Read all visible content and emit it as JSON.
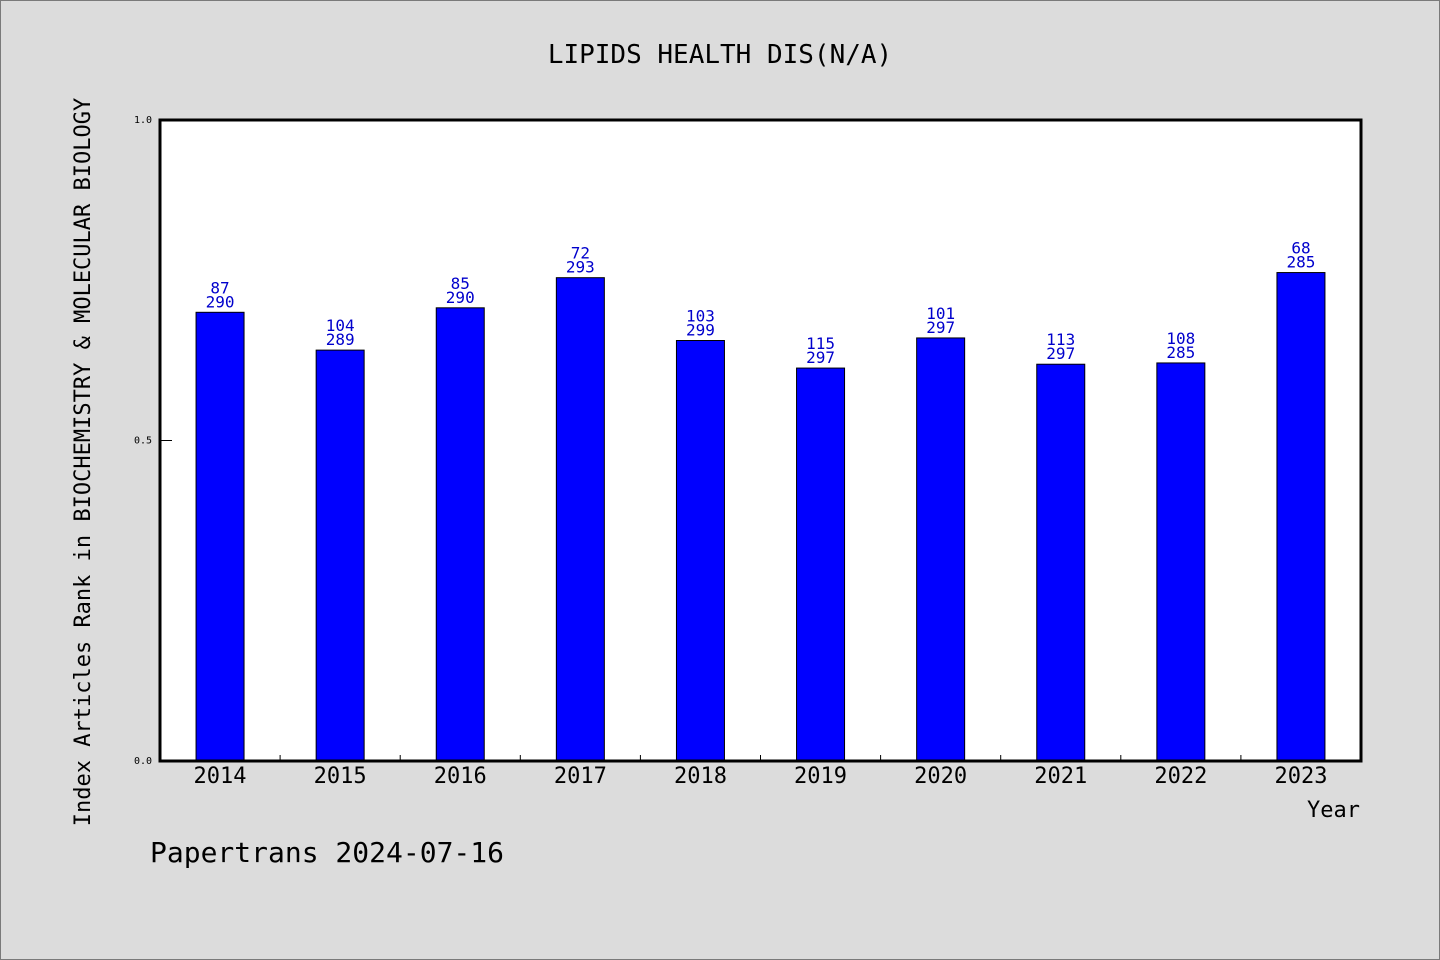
{
  "chart_data": {
    "type": "bar",
    "title": "LIPIDS HEALTH DIS(N/A)",
    "xlabel": "Year",
    "ylabel": "Index Articles Rank in BIOCHEMISTRY & MOLECULAR BIOLOGY",
    "categories": [
      "2014",
      "2015",
      "2016",
      "2017",
      "2018",
      "2019",
      "2020",
      "2021",
      "2022",
      "2023"
    ],
    "values": [
      0.7,
      0.641,
      0.707,
      0.754,
      0.656,
      0.613,
      0.66,
      0.619,
      0.621,
      0.762
    ],
    "labels": [
      {
        "rank": "87",
        "total": "290"
      },
      {
        "rank": "104",
        "total": "289"
      },
      {
        "rank": "85",
        "total": "290"
      },
      {
        "rank": "72",
        "total": "293"
      },
      {
        "rank": "103",
        "total": "299"
      },
      {
        "rank": "115",
        "total": "297"
      },
      {
        "rank": "101",
        "total": "297"
      },
      {
        "rank": "113",
        "total": "297"
      },
      {
        "rank": "108",
        "total": "285"
      },
      {
        "rank": "68",
        "total": "285"
      }
    ],
    "ylim": [
      0,
      1
    ],
    "yticks": [
      "0.0",
      "0.5",
      "1.0"
    ],
    "grid": false,
    "colors": {
      "bar": "#0000ff",
      "label": "#0000cc",
      "plot_bg": "#ffffff",
      "page_bg": "#dcdcdc"
    }
  },
  "footer": "Papertrans 2024-07-16"
}
